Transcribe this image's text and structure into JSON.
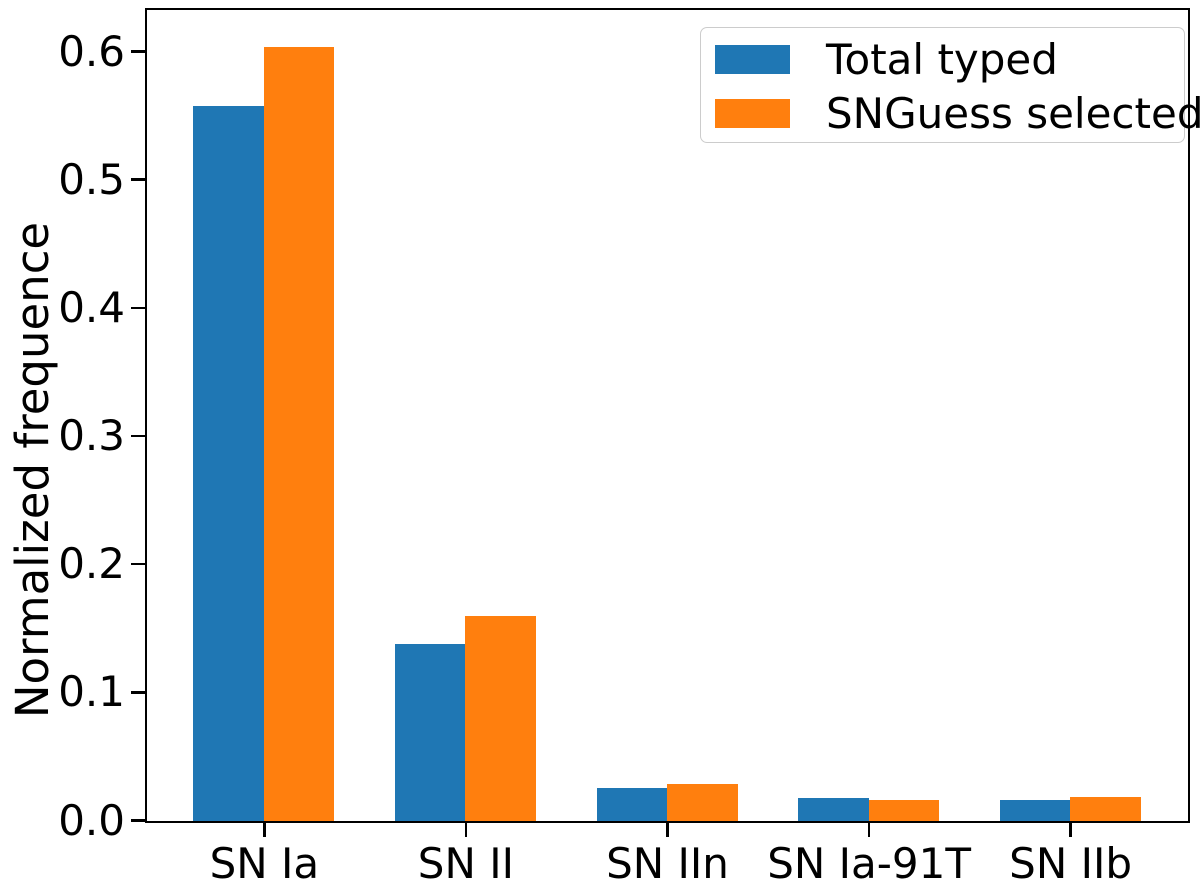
{
  "chart_data": {
    "type": "bar",
    "title": "",
    "xlabel": "",
    "ylabel": "Normalized frequence",
    "categories": [
      "SN Ia",
      "SN II",
      "SN IIn",
      "SN Ia-91T",
      "SN IIb"
    ],
    "series": [
      {
        "name": "Total typed",
        "color": "#1f77b4",
        "values": [
          0.558,
          0.138,
          0.026,
          0.018,
          0.0165
        ]
      },
      {
        "name": "SNGuess selected",
        "color": "#ff7f0e",
        "values": [
          0.604,
          0.16,
          0.029,
          0.0165,
          0.019
        ]
      }
    ],
    "yticks": [
      "0.0",
      "0.1",
      "0.2",
      "0.3",
      "0.4",
      "0.5",
      "0.6"
    ],
    "ylim": [
      0,
      0.632
    ],
    "grid": false,
    "legend_position": "upper right",
    "bar_width": 0.35,
    "x_edge_padding": 0.58,
    "axis_color": "#000000",
    "legend_border_color": "#cccccc"
  }
}
